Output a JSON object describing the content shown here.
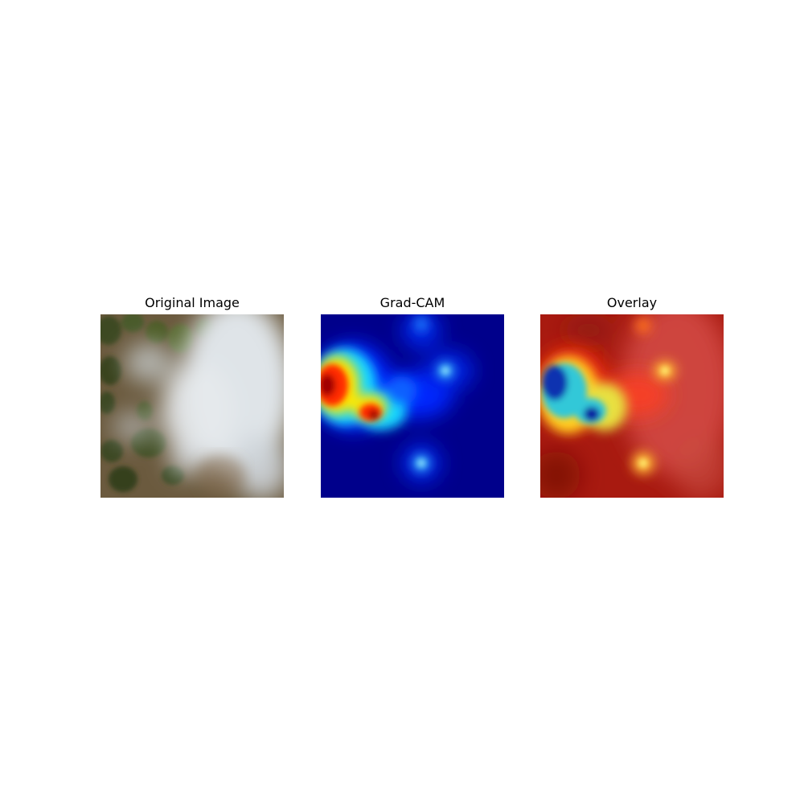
{
  "figure": {
    "panels": [
      {
        "title": "Original Image",
        "content": "aerial-forest-smoke-photo"
      },
      {
        "title": "Grad-CAM",
        "content": "jet-colormap-heatmap"
      },
      {
        "title": "Overlay",
        "content": "heatmap-over-photo"
      }
    ]
  },
  "colors": {
    "background": "#ffffff",
    "heatmap_base": "#00008b",
    "heatmap_peak": "#8b0000",
    "smoke": "#d8dde2",
    "forest": "#4a4a28"
  }
}
